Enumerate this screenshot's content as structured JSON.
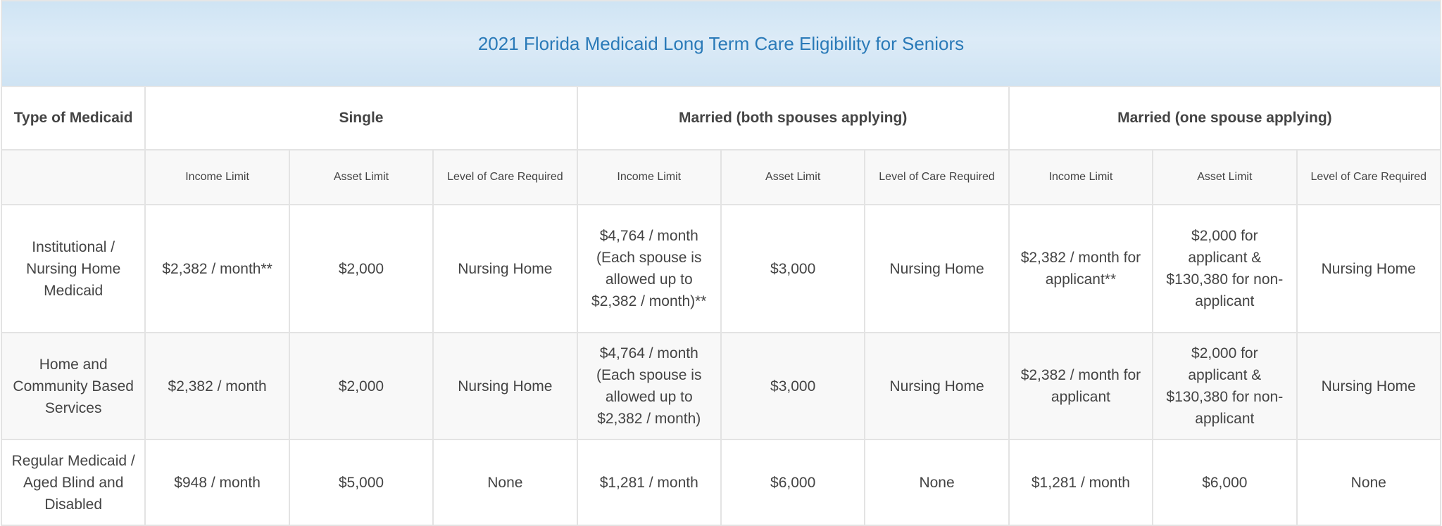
{
  "title": "2021 Florida Medicaid Long Term Care Eligibility for Seniors",
  "headers": {
    "type": "Type of Medicaid",
    "groups": [
      "Single",
      "Married (both spouses applying)",
      "Married (one spouse applying)"
    ]
  },
  "subheaders": [
    "Income Limit",
    "Asset Limit",
    "Level of Care Required"
  ],
  "rows": [
    {
      "type": "Institutional / Nursing Home Medicaid",
      "cells": [
        "$2,382 / month**",
        "$2,000",
        "Nursing Home",
        "$4,764 / month (Each spouse is allowed up to $2,382 / month)**",
        "$3,000",
        "Nursing Home",
        "$2,382 / month for applicant**",
        "$2,000 for applicant & $130,380 for non-applicant",
        "Nursing Home"
      ]
    },
    {
      "type": "Home and Community Based Services",
      "cells": [
        "$2,382 / month",
        "$2,000",
        "Nursing Home",
        "$4,764 / month (Each spouse is allowed up to $2,382 / month)",
        "$3,000",
        "Nursing Home",
        "$2,382 / month for applicant",
        "$2,000 for applicant & $130,380 for non-applicant",
        "Nursing Home"
      ]
    },
    {
      "type": "Regular Medicaid / Aged Blind and Disabled",
      "cells": [
        "$948 / month",
        "$5,000",
        "None",
        "$1,281 / month",
        "$6,000",
        "None",
        "$1,281 / month",
        "$6,000",
        "None"
      ]
    }
  ]
}
